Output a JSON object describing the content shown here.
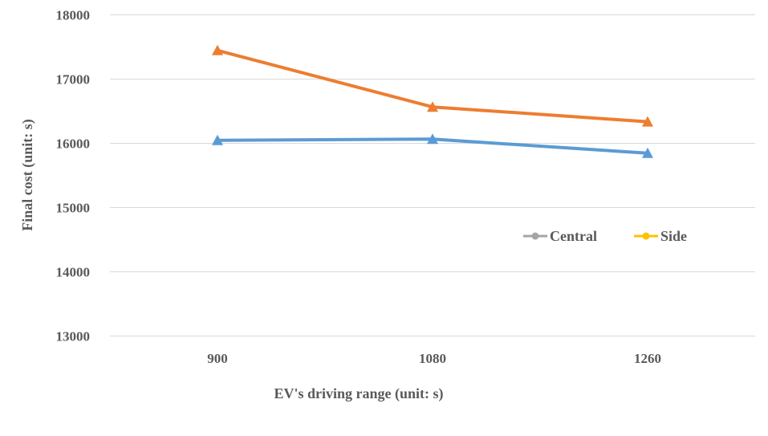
{
  "chart_data": {
    "type": "line",
    "title": "",
    "xlabel": "EV's driving range (unit: s)",
    "ylabel": "Final cost (unit: s)",
    "categories": [
      "900",
      "1080",
      "1260"
    ],
    "ylim": [
      13000,
      18000
    ],
    "yticks": [
      13000,
      14000,
      15000,
      16000,
      17000,
      18000
    ],
    "grid": true,
    "series": [
      {
        "name": "Central",
        "values": [
          16040,
          16060,
          15840
        ],
        "color": "#5B9BD5",
        "marker": "triangle"
      },
      {
        "name": "Side",
        "values": [
          17440,
          16560,
          16330
        ],
        "color": "#ED7D31",
        "marker": "triangle"
      }
    ],
    "legend": {
      "placement": "center-right",
      "entries": [
        {
          "label": "Central",
          "color": "#A5A5A5"
        },
        {
          "label": "Side",
          "color": "#FFC000"
        }
      ]
    },
    "colors": {
      "grid": "#D9D9D9",
      "text": "#595959"
    }
  }
}
